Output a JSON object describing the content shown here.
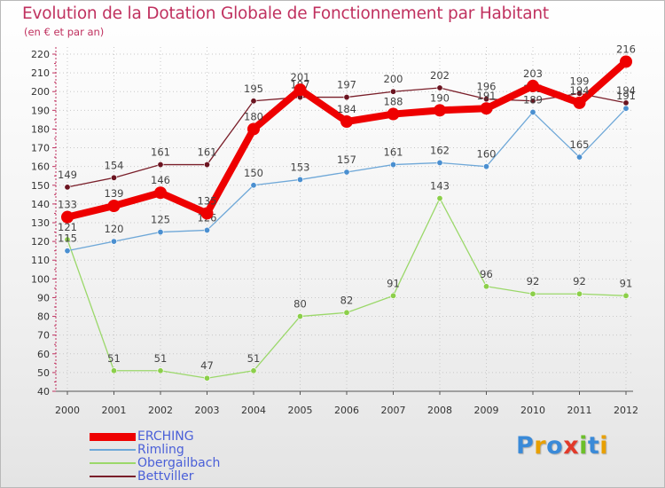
{
  "header": {
    "title": "Evolution de la Dotation Globale de Fonctionnement par Habitant",
    "subtitle": "(en € et par an)"
  },
  "logo": {
    "text": "Proxiti",
    "letters": [
      {
        "ch": "P",
        "color": "#3a8ad8"
      },
      {
        "ch": "r",
        "color": "#e8a000"
      },
      {
        "ch": "o",
        "color": "#3a8ad8"
      },
      {
        "ch": "x",
        "color": "#e23a2a"
      },
      {
        "ch": "i",
        "color": "#6cbf2a"
      },
      {
        "ch": "t",
        "color": "#3a8ad8"
      },
      {
        "ch": "i",
        "color": "#e8a000"
      }
    ]
  },
  "chart_data": {
    "type": "line",
    "title": "Evolution de la Dotation Globale de Fonctionnement par Habitant",
    "subtitle": "(en € et par an)",
    "categories": [
      "2000",
      "2001",
      "2002",
      "2003",
      "2004",
      "2005",
      "2006",
      "2007",
      "2008",
      "2009",
      "2010",
      "2011",
      "2012"
    ],
    "ylim": [
      40,
      220
    ],
    "yticks": [
      40,
      50,
      60,
      70,
      80,
      90,
      100,
      110,
      120,
      130,
      140,
      150,
      160,
      170,
      180,
      190,
      200,
      210,
      220
    ],
    "grid": true,
    "legend_position": "bottom-left",
    "series": [
      {
        "name": "Bettviller",
        "color": "#7a1f2a",
        "marker": "#6b1420",
        "values": [
          149,
          154,
          161,
          161,
          195,
          197,
          197,
          200,
          202,
          196,
          195,
          199,
          194
        ]
      },
      {
        "name": "Obergailbach",
        "color": "#9bd86a",
        "marker": "#8ccf4a",
        "values": [
          121,
          51,
          51,
          47,
          51,
          80,
          82,
          91,
          143,
          96,
          92,
          92,
          91
        ]
      },
      {
        "name": "Rimling",
        "color": "#6fa8d8",
        "marker": "#4a8fd0",
        "values": [
          115,
          120,
          125,
          126,
          150,
          153,
          157,
          161,
          162,
          160,
          189,
          165,
          191
        ]
      },
      {
        "name": "ERCHING",
        "color": "#ee0000",
        "marker": "#ee0000",
        "values": [
          133,
          139,
          146,
          135,
          180,
          201,
          184,
          188,
          190,
          191,
          203,
          194,
          216
        ]
      }
    ],
    "legend": [
      "ERCHING",
      "Rimling",
      "Obergailbach",
      "Bettviller"
    ]
  }
}
